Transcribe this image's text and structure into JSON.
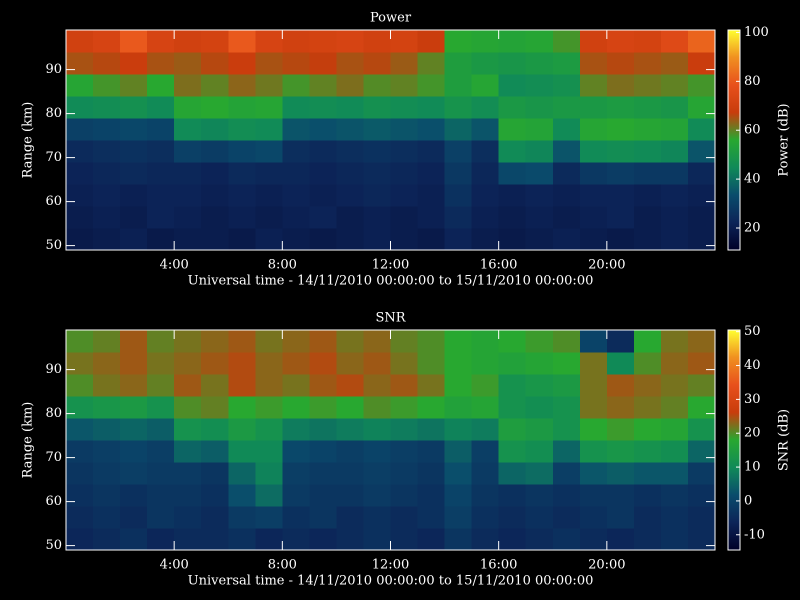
{
  "chart_data": [
    {
      "type": "heatmap",
      "title": "Power",
      "xlabel": "Universal time - 14/11/2010 00:00:00 to 15/11/2010 00:00:00",
      "ylabel": "Range (km)",
      "zlabel": "Power (dB)",
      "xlim": [
        0,
        24
      ],
      "ylim": [
        49,
        99
      ],
      "zlim": [
        11,
        101
      ],
      "xticks": [
        {
          "value": 4,
          "label": "4:00"
        },
        {
          "value": 8,
          "label": "8:00"
        },
        {
          "value": 12,
          "label": "12:00"
        },
        {
          "value": 16,
          "label": "16:00"
        },
        {
          "value": 20,
          "label": "20:00"
        }
      ],
      "yticks": [
        50,
        60,
        70,
        80,
        90
      ],
      "zticks": [
        20,
        40,
        60,
        80,
        100
      ],
      "colormap": [
        "#000028",
        "#0c2458",
        "#0a4c6c",
        "#108a58",
        "#28a830",
        "#c83c0c",
        "#e8501c",
        "#f09020",
        "#ffff30"
      ],
      "xbins": [
        0,
        1,
        2,
        3,
        4,
        5,
        6,
        7,
        8,
        9,
        10,
        11,
        12,
        13,
        14,
        15,
        16,
        17,
        18,
        19,
        20,
        21,
        22,
        23,
        24
      ],
      "ybins": [
        49,
        54,
        59,
        64,
        69,
        74,
        79,
        84,
        89,
        94,
        99
      ],
      "values": [
        [
          19,
          20,
          21,
          19,
          20,
          20,
          19,
          21,
          20,
          19,
          20,
          21,
          20,
          19,
          22,
          20,
          19,
          20,
          21,
          20,
          19,
          20,
          21,
          20
        ],
        [
          20,
          21,
          20,
          22,
          21,
          20,
          21,
          20,
          21,
          22,
          20,
          21,
          20,
          21,
          24,
          21,
          20,
          21,
          20,
          21,
          22,
          20,
          21,
          20
        ],
        [
          21,
          22,
          21,
          22,
          22,
          21,
          22,
          21,
          22,
          21,
          22,
          23,
          22,
          21,
          26,
          22,
          21,
          22,
          21,
          22,
          22,
          21,
          22,
          21
        ],
        [
          22,
          23,
          24,
          23,
          23,
          22,
          24,
          23,
          23,
          22,
          23,
          24,
          23,
          22,
          28,
          23,
          32,
          33,
          24,
          28,
          29,
          28,
          28,
          23
        ],
        [
          24,
          25,
          26,
          25,
          30,
          29,
          31,
          32,
          25,
          24,
          25,
          26,
          25,
          24,
          30,
          25,
          45,
          44,
          35,
          45,
          46,
          45,
          44,
          35
        ],
        [
          30,
          31,
          32,
          31,
          45,
          44,
          46,
          45,
          35,
          34,
          35,
          36,
          35,
          34,
          38,
          35,
          55,
          54,
          45,
          55,
          56,
          55,
          54,
          45
        ],
        [
          45,
          46,
          47,
          45,
          55,
          56,
          54,
          55,
          45,
          46,
          45,
          47,
          46,
          45,
          48,
          46,
          50,
          49,
          50,
          50,
          51,
          50,
          49,
          55
        ],
        [
          55,
          58,
          60,
          56,
          62,
          60,
          63,
          61,
          58,
          60,
          62,
          59,
          60,
          58,
          52,
          55,
          45,
          46,
          47,
          60,
          62,
          61,
          60,
          58
        ],
        [
          65,
          66,
          68,
          65,
          64,
          66,
          68,
          65,
          66,
          67,
          65,
          66,
          64,
          60,
          52,
          50,
          49,
          50,
          51,
          65,
          66,
          65,
          64,
          68
        ],
        [
          70,
          72,
          80,
          72,
          70,
          71,
          80,
          72,
          70,
          71,
          72,
          70,
          71,
          68,
          56,
          55,
          54,
          55,
          58,
          70,
          72,
          71,
          75,
          82
        ]
      ]
    },
    {
      "type": "heatmap",
      "title": "SNR",
      "xlabel": "Universal time - 14/11/2010 00:00:00 to 15/11/2010 00:00:00",
      "ylabel": "Range (km)",
      "zlabel": "SNR (dB)",
      "xlim": [
        0,
        24
      ],
      "ylim": [
        49,
        99
      ],
      "zlim": [
        -14.5,
        50.5
      ],
      "xticks": [
        {
          "value": 4,
          "label": "4:00"
        },
        {
          "value": 8,
          "label": "8:00"
        },
        {
          "value": 12,
          "label": "12:00"
        },
        {
          "value": 16,
          "label": "16:00"
        },
        {
          "value": 20,
          "label": "20:00"
        }
      ],
      "yticks": [
        50,
        60,
        70,
        80,
        90
      ],
      "zticks": [
        -10,
        0,
        10,
        20,
        30,
        40,
        50
      ],
      "colormap": [
        "#000028",
        "#0c2458",
        "#0a4c6c",
        "#108a58",
        "#28a830",
        "#c83c0c",
        "#e8501c",
        "#f09020",
        "#ffff30"
      ],
      "xbins": [
        0,
        1,
        2,
        3,
        4,
        5,
        6,
        7,
        8,
        9,
        10,
        11,
        12,
        13,
        14,
        15,
        16,
        17,
        18,
        19,
        20,
        21,
        22,
        23,
        24
      ],
      "ybins": [
        49,
        54,
        59,
        64,
        69,
        74,
        79,
        84,
        89,
        94,
        99
      ],
      "values": [
        [
          -6,
          -5,
          -4,
          -6,
          -5,
          -5,
          -4,
          -6,
          -5,
          -6,
          -5,
          -4,
          -5,
          -6,
          -3,
          -5,
          -6,
          -5,
          -4,
          -5,
          -6,
          -5,
          -4,
          -5
        ],
        [
          -5,
          -4,
          -5,
          -3,
          -4,
          -5,
          -2,
          -1,
          -4,
          -3,
          -5,
          -4,
          -5,
          -4,
          -1,
          -4,
          -5,
          -4,
          -5,
          -4,
          -3,
          -5,
          -4,
          -5
        ],
        [
          -4,
          -3,
          -4,
          -3,
          -3,
          -4,
          2,
          6,
          -2,
          -3,
          -3,
          -2,
          -3,
          -4,
          0,
          -3,
          -4,
          -3,
          -4,
          -3,
          -3,
          -4,
          -3,
          -4
        ],
        [
          -3,
          -2,
          -1,
          -2,
          -2,
          -3,
          5,
          9,
          -1,
          -2,
          -2,
          -1,
          -2,
          -3,
          2,
          -2,
          5,
          6,
          -1,
          3,
          4,
          3,
          3,
          -2
        ],
        [
          -2,
          -1,
          0,
          -1,
          5,
          4,
          10,
          10,
          1,
          0,
          -1,
          0,
          -1,
          -2,
          4,
          -1,
          12,
          11,
          5,
          12,
          13,
          12,
          11,
          5
        ],
        [
          3,
          4,
          5,
          4,
          12,
          11,
          14,
          12,
          8,
          7,
          8,
          9,
          8,
          7,
          9,
          8,
          15,
          14,
          12,
          18,
          19,
          18,
          17,
          12
        ],
        [
          12,
          13,
          14,
          12,
          20,
          21,
          18,
          19,
          18,
          19,
          18,
          20,
          19,
          18,
          16,
          17,
          12,
          11,
          12,
          22,
          23,
          22,
          21,
          18
        ],
        [
          20,
          22,
          23,
          21,
          24,
          22,
          25,
          23,
          22,
          24,
          25,
          23,
          24,
          22,
          18,
          19,
          12,
          13,
          14,
          22,
          24,
          23,
          22,
          21
        ],
        [
          22,
          23,
          24,
          22,
          23,
          24,
          25,
          23,
          24,
          25,
          23,
          24,
          22,
          20,
          18,
          17,
          16,
          17,
          18,
          22,
          10,
          20,
          23,
          24
        ],
        [
          20,
          21,
          24,
          21,
          22,
          23,
          24,
          22,
          23,
          24,
          22,
          23,
          21,
          20,
          18,
          17,
          18,
          19,
          20,
          0,
          -5,
          18,
          22,
          23
        ]
      ]
    }
  ]
}
